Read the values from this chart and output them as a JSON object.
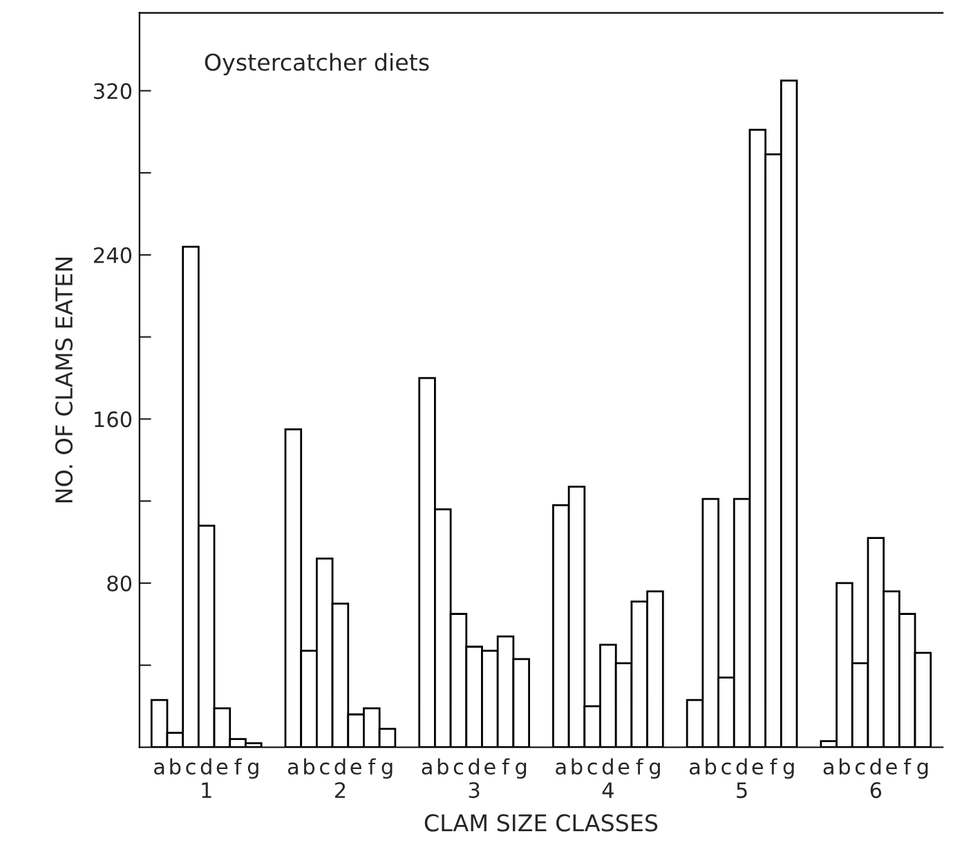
{
  "chart_data": {
    "type": "bar",
    "title": "Oystercatcher diets",
    "xlabel": "CLAM SIZE CLASSES",
    "ylabel": "NO. OF CLAMS EATEN",
    "categories": [
      "1",
      "2",
      "3",
      "4",
      "5",
      "6"
    ],
    "series": [
      {
        "name": "a",
        "color": "#ffffff",
        "values": [
          23,
          155,
          180,
          118,
          23,
          3
        ]
      },
      {
        "name": "b",
        "color": "#ffffff",
        "values": [
          7,
          47,
          116,
          127,
          121,
          80
        ]
      },
      {
        "name": "c",
        "color": "#ffffff",
        "values": [
          244,
          92,
          65,
          20,
          34,
          41
        ]
      },
      {
        "name": "d",
        "color": "#ffffff",
        "values": [
          108,
          70,
          49,
          50,
          121,
          102
        ]
      },
      {
        "name": "e",
        "color": "#ffffff",
        "values": [
          19,
          16,
          47,
          41,
          301,
          76
        ]
      },
      {
        "name": "f",
        "color": "#ffffff",
        "values": [
          4,
          19,
          54,
          71,
          289,
          65
        ]
      },
      {
        "name": "g",
        "color": "#ffffff",
        "values": [
          2,
          9,
          43,
          76,
          325,
          46
        ]
      }
    ],
    "ylim": [
      0,
      358
    ],
    "yticks": [
      {
        "value": 40,
        "label": null
      },
      80,
      {
        "value": 120,
        "label": null
      },
      160,
      {
        "value": 200,
        "label": null
      },
      240,
      {
        "value": 280,
        "label": null
      },
      320
    ],
    "grid": false,
    "legend": false
  }
}
